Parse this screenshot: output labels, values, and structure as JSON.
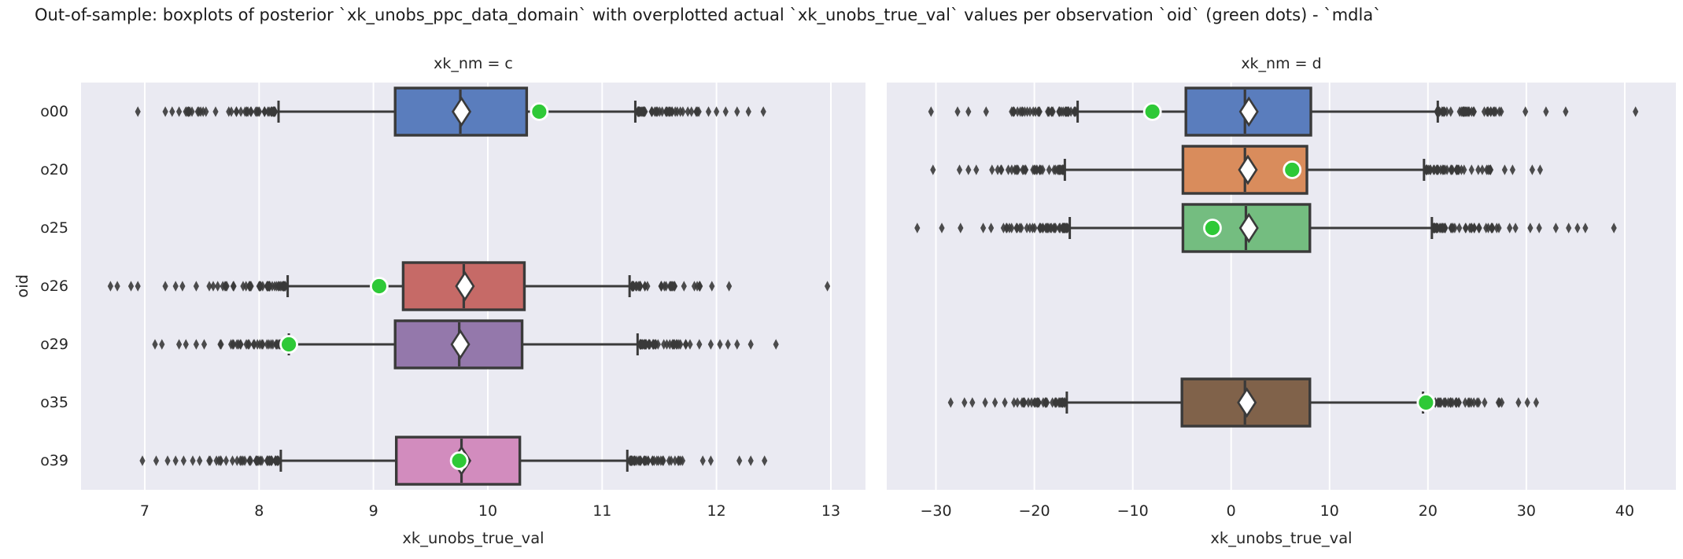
{
  "figure": {
    "title": "Out-of-sample: boxplots of posterior `xk_unobs_ppc_data_domain` with overplotted actual `xk_unobs_true_val` values per observation `oid` (green dots) - `mdla`"
  },
  "style": {
    "panel_bg": "#eaeaf2",
    "grid": "#ffffff",
    "line": "#3a3a3a",
    "text": "#262626",
    "true_dot": "#2ec937",
    "mean_fill": "#ffffff"
  },
  "chart_data": {
    "type": "boxplot-horizontal",
    "xlabel": "xk_unobs_true_val",
    "ylabel": "oid",
    "categories": [
      "o00",
      "o20",
      "o25",
      "o26",
      "o29",
      "o35",
      "o39"
    ],
    "true_value_marker": "green dot",
    "mean_marker": "white diamond",
    "panels": [
      {
        "title": "xk_nm = c",
        "xlim": [
          6.443,
          13.303
        ],
        "ticks": [
          7,
          8,
          9,
          10,
          11,
          12,
          13
        ],
        "grid": true,
        "boxes": [
          {
            "cat": "o00",
            "color": "#5a7dbd",
            "q1": 9.19,
            "med": 9.76,
            "q3": 10.34,
            "mean": 9.77,
            "lo": 8.17,
            "hi": 11.29,
            "true_val": 10.45,
            "fl": [
              7.35,
              8.14,
              42
            ],
            "fl_pts": [
              6.94,
              7.18,
              7.24,
              7.3
            ],
            "fr": [
              11.31,
              11.85,
              44
            ],
            "fr_pts": [
              11.93,
              12.0,
              12.08,
              12.18,
              12.28,
              12.41
            ]
          },
          {
            "cat": "o26",
            "color": "#c66a67",
            "q1": 9.26,
            "med": 9.79,
            "q3": 10.32,
            "mean": 9.8,
            "lo": 8.25,
            "hi": 11.24,
            "true_val": 9.05,
            "fl": [
              7.55,
              8.23,
              44
            ],
            "fl_pts": [
              6.7,
              6.76,
              6.88,
              6.94,
              7.18,
              7.27,
              7.33,
              7.45
            ],
            "fr": [
              11.26,
              11.88,
              42
            ],
            "fr_pts": [
              11.96,
              12.11,
              12.97
            ]
          },
          {
            "cat": "o29",
            "color": "#9478ab",
            "q1": 9.19,
            "med": 9.75,
            "q3": 10.3,
            "mean": 9.76,
            "lo": 8.26,
            "hi": 11.31,
            "true_val": 8.26,
            "fl": [
              7.62,
              8.24,
              44
            ],
            "fl_pts": [
              7.09,
              7.15,
              7.3,
              7.36,
              7.45,
              7.52
            ],
            "fr": [
              11.33,
              11.78,
              42
            ],
            "fr_pts": [
              11.85,
              11.95,
              12.03,
              12.1,
              12.18,
              12.3,
              12.52
            ]
          },
          {
            "cat": "o39",
            "color": "#d28cbe",
            "q1": 9.2,
            "med": 9.77,
            "q3": 10.28,
            "mean": 9.77,
            "lo": 8.19,
            "hi": 11.22,
            "true_val": 9.75,
            "fl": [
              7.55,
              8.17,
              42
            ],
            "fl_pts": [
              6.98,
              7.1,
              7.2,
              7.27,
              7.34,
              7.42,
              7.48
            ],
            "fr": [
              11.24,
              11.76,
              40
            ],
            "fr_pts": [
              11.88,
              11.95,
              12.2,
              12.3,
              12.42
            ]
          }
        ]
      },
      {
        "title": "xk_nm = d",
        "xlim": [
          -35.0,
          45.2
        ],
        "ticks": [
          -30,
          -20,
          -10,
          0,
          10,
          20,
          30,
          40
        ],
        "grid": true,
        "boxes": [
          {
            "cat": "o00",
            "color": "#5a7dbd",
            "q1": -4.6,
            "med": 1.4,
            "q3": 8.1,
            "mean": 1.8,
            "lo": -15.6,
            "hi": 21.0,
            "true_val": -8.0,
            "fl": [
              -22.5,
              -15.8,
              40
            ],
            "fl_pts": [
              -30.5,
              -27.8,
              -26.7,
              -24.9
            ],
            "fr": [
              20.9,
              28.2,
              42
            ],
            "fr_pts": [
              29.9,
              32.0,
              34.0,
              41.1
            ]
          },
          {
            "cat": "o20",
            "color": "#d98c5c",
            "q1": -4.9,
            "med": 1.4,
            "q3": 7.7,
            "mean": 1.7,
            "lo": -16.9,
            "hi": 19.6,
            "true_val": 6.2,
            "fl": [
              -23.8,
              -17.0,
              40
            ],
            "fl_pts": [
              -30.3,
              -27.6,
              -26.7,
              -25.9,
              -24.3
            ],
            "fr": [
              19.7,
              26.8,
              40
            ],
            "fr_pts": [
              27.8,
              28.6,
              30.6,
              31.4
            ]
          },
          {
            "cat": "o25",
            "color": "#74bd80",
            "q1": -4.9,
            "med": 1.5,
            "q3": 8.0,
            "mean": 1.8,
            "lo": -16.4,
            "hi": 20.4,
            "true_val": -1.9,
            "fl": [
              -23.2,
              -16.6,
              42
            ],
            "fl_pts": [
              -31.9,
              -29.4,
              -27.5,
              -25.2,
              -24.4
            ],
            "fr": [
              20.5,
              28.8,
              44
            ],
            "fr_pts": [
              28.9,
              30.4,
              31.3,
              33.0,
              34.3,
              35.2,
              36.0,
              38.9
            ]
          },
          {
            "cat": "o35",
            "color": "#80624a",
            "q1": -5.0,
            "med": 1.4,
            "q3": 8.0,
            "mean": 1.6,
            "lo": -16.7,
            "hi": 19.5,
            "true_val": 19.8,
            "fl": [
              -22.3,
              -16.9,
              40
            ],
            "fl_pts": [
              -28.5,
              -27.1,
              -26.3,
              -25.0,
              -24.0,
              -23.0
            ],
            "fr": [
              19.6,
              27.3,
              42
            ],
            "fr_pts": [
              27.5,
              29.2,
              30.1,
              31.0
            ]
          }
        ]
      }
    ]
  }
}
